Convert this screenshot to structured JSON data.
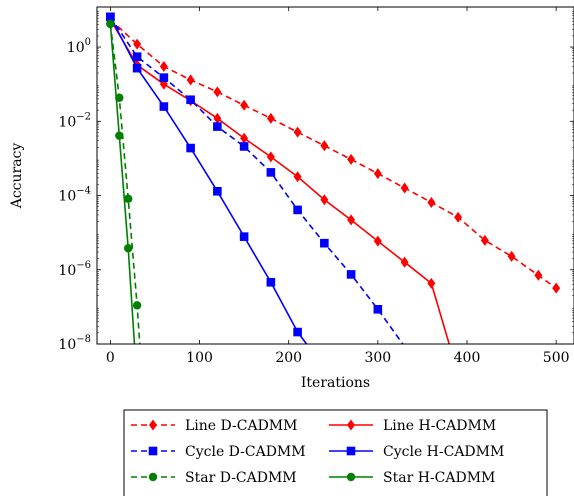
{
  "chart_data": {
    "type": "line",
    "title": "",
    "xlabel": "Iterations",
    "ylabel": "Accuracy",
    "xlim": [
      -15,
      520
    ],
    "ylim": [
      1e-08,
      12
    ],
    "yscale": "log",
    "grid": false,
    "legend_position": "bottom-outside",
    "x_ticks": [
      0,
      100,
      200,
      300,
      400,
      500
    ],
    "x_tick_labels": [
      "0",
      "100",
      "200",
      "300",
      "400",
      "500"
    ],
    "y_ticks": [
      -8,
      -6,
      -4,
      -2,
      0
    ],
    "y_tick_labels": [
      {
        "base": "10",
        "exp": "−8"
      },
      {
        "base": "10",
        "exp": "−6"
      },
      {
        "base": "10",
        "exp": "−4"
      },
      {
        "base": "10",
        "exp": "−2"
      },
      {
        "base": "10",
        "exp": "0"
      }
    ],
    "series": [
      {
        "name": "Line D-CADMM",
        "color": "#ff0000",
        "dash": true,
        "marker": "diamond",
        "x": [
          0,
          30,
          60,
          90,
          120,
          150,
          180,
          210,
          240,
          270,
          300,
          330,
          360,
          390,
          420,
          450,
          480,
          500
        ],
        "y": [
          5.5,
          1.2,
          0.3,
          0.13,
          0.062,
          0.027,
          0.012,
          0.0051,
          0.0022,
          0.00094,
          0.00039,
          0.00016,
          6.5e-05,
          2.6e-05,
          6.2e-06,
          2.3e-06,
          7.1e-07,
          3.2e-07
        ]
      },
      {
        "name": "Line H-CADMM",
        "color": "#ff0000",
        "dash": false,
        "marker": "diamond",
        "x": [
          0,
          30,
          60,
          90,
          120,
          150,
          180,
          210,
          240,
          270,
          300,
          330,
          360,
          380
        ],
        "y": [
          5.5,
          0.33,
          0.1,
          0.036,
          0.012,
          0.0035,
          0.0011,
          0.00032,
          7.7e-05,
          2.2e-05,
          5.9e-06,
          1.6e-06,
          4.3e-07,
          1e-08
        ]
      },
      {
        "name": "Cycle D-CADMM",
        "color": "#0000ff",
        "dash": true,
        "marker": "square",
        "x": [
          0,
          30,
          60,
          90,
          120,
          150,
          180,
          210,
          240,
          270,
          300,
          328
        ],
        "y": [
          6.5,
          0.55,
          0.15,
          0.038,
          0.0072,
          0.0021,
          0.00042,
          4.1e-05,
          5.2e-06,
          7.5e-07,
          8.6e-08,
          1e-08
        ]
      },
      {
        "name": "Cycle H-CADMM",
        "color": "#0000ff",
        "dash": false,
        "marker": "square",
        "x": [
          0,
          30,
          60,
          90,
          120,
          150,
          180,
          210,
          220
        ],
        "y": [
          6.5,
          0.27,
          0.025,
          0.0019,
          0.00013,
          7.8e-06,
          4.6e-07,
          2.1e-08,
          1e-08
        ]
      },
      {
        "name": "Star D-CADMM",
        "color": "#008000",
        "dash": true,
        "marker": "circle",
        "x": [
          0,
          10,
          20,
          30,
          33
        ],
        "y": [
          4.2,
          0.043,
          8.2e-05,
          1.1e-07,
          1e-08
        ]
      },
      {
        "name": "Star H-CADMM",
        "color": "#008000",
        "dash": false,
        "marker": "circle",
        "x": [
          0,
          10,
          20,
          27
        ],
        "y": [
          4.2,
          0.0041,
          3.8e-06,
          1e-08
        ]
      }
    ]
  }
}
